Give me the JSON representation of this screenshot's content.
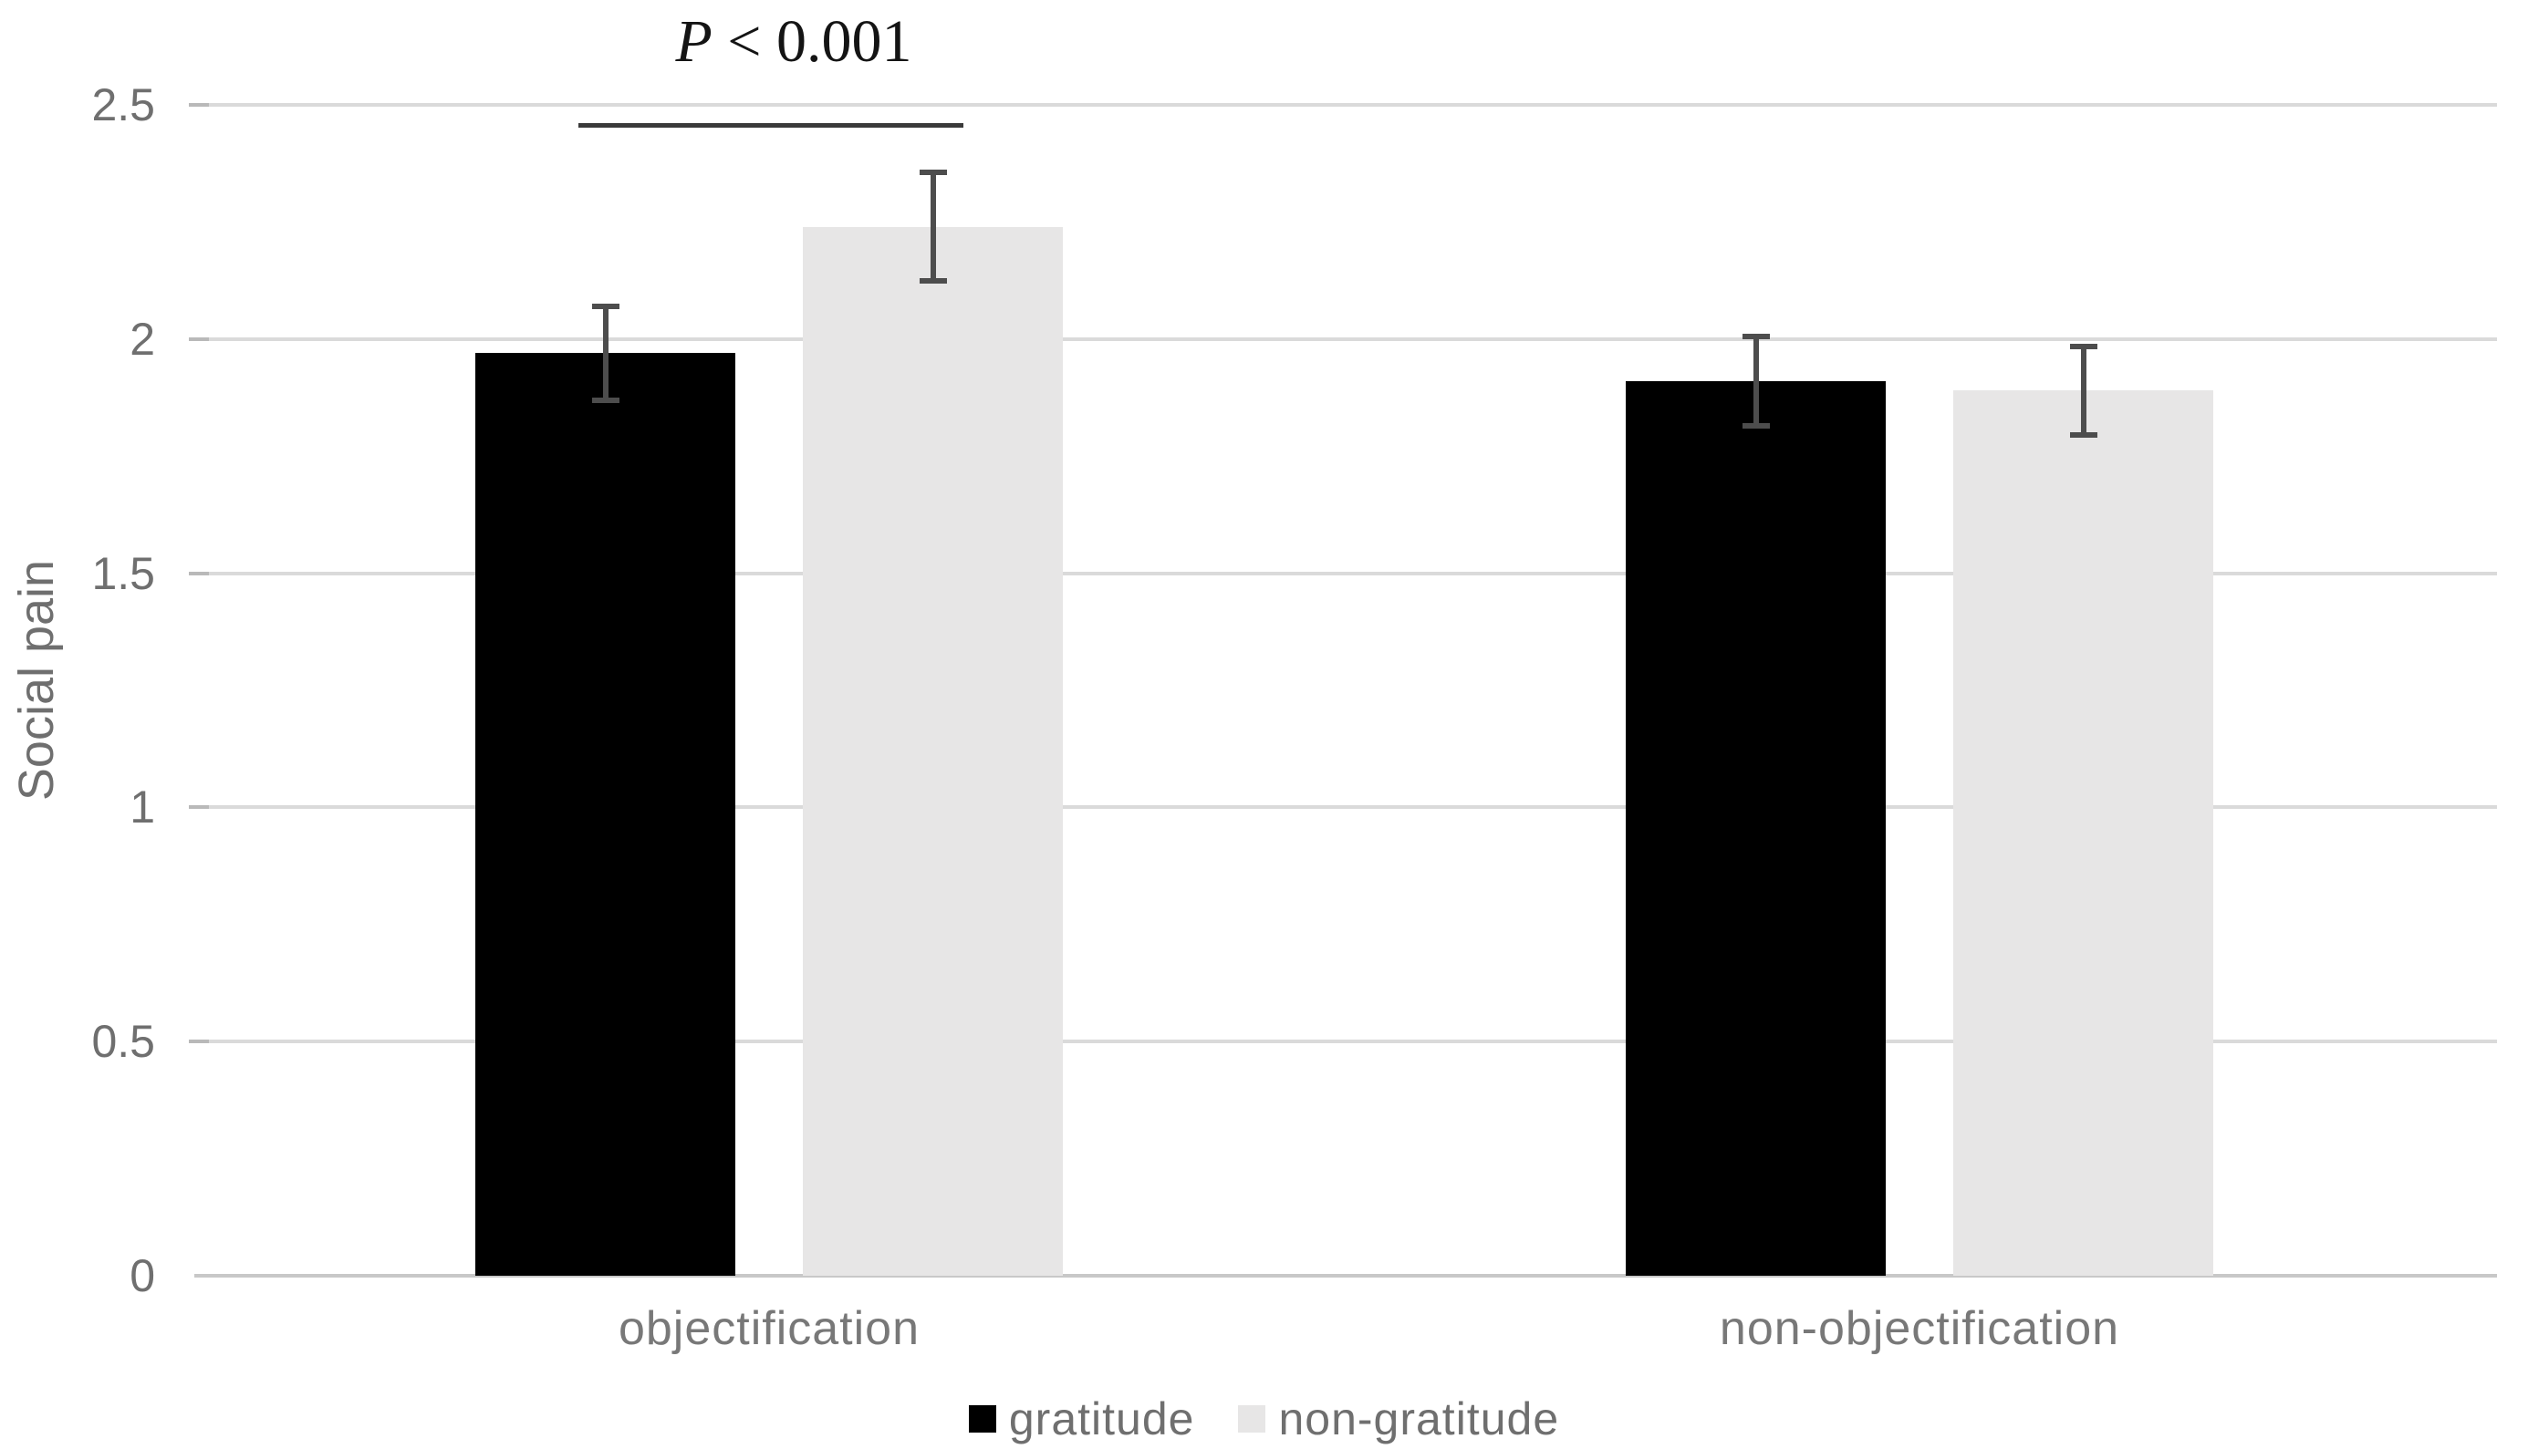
{
  "chart_data": {
    "type": "bar",
    "title": "",
    "ylabel": "Social pain",
    "xlabel": "",
    "categories": [
      "objectification",
      "non-objectification"
    ],
    "series": [
      {
        "name": "gratitude",
        "color": "#000000",
        "values": [
          1.97,
          1.91
        ],
        "errors": [
          0.1,
          0.095
        ]
      },
      {
        "name": "non-gratitude",
        "color": "#e7e6e6",
        "values": [
          2.24,
          1.89
        ],
        "errors": [
          0.115,
          0.095
        ]
      }
    ],
    "ylim": [
      0,
      2.5
    ],
    "yticks": [
      "0",
      "0.5",
      "1",
      "1.5",
      "2",
      "2.5"
    ],
    "grid": true,
    "error_bars": true,
    "legend_position": "bottom",
    "annotation": {
      "text": "P < 0.001",
      "italic_part": "P",
      "rest_part": " < 0.001",
      "target_category": "objectification"
    },
    "colors": {
      "gridline": "#dadada",
      "axis_line": "#c8c8c8",
      "tick_stub": "#b9b9b9",
      "error_bar": "#4d4d4d",
      "significance_line": "#3a3a3a",
      "axis_text": "#6f6f6f",
      "annotation_text": "#141414"
    }
  }
}
